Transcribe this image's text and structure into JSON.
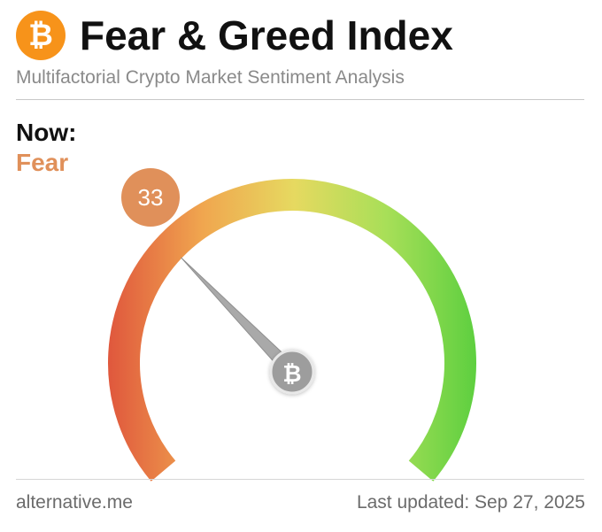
{
  "header": {
    "logo_glyph": "₿",
    "title": "Fear & Greed Index",
    "subtitle": "Multifactorial Crypto Market Sentiment Analysis"
  },
  "status": {
    "now_label": "Now:",
    "classification": "Fear",
    "classification_color": "#e0905a"
  },
  "gauge": {
    "value": 33,
    "value_text": "33",
    "min": 0,
    "max": 100,
    "badge_color": "#e0905a",
    "center_icon": "bitcoin-icon",
    "center_glyph": "₿",
    "gradient_colors": [
      "#e0593d",
      "#f0a64f",
      "#e6d960",
      "#a8df58",
      "#5ccf3f"
    ]
  },
  "footer": {
    "source": "alternative.me",
    "last_updated": "Last updated: Sep 27, 2025"
  }
}
